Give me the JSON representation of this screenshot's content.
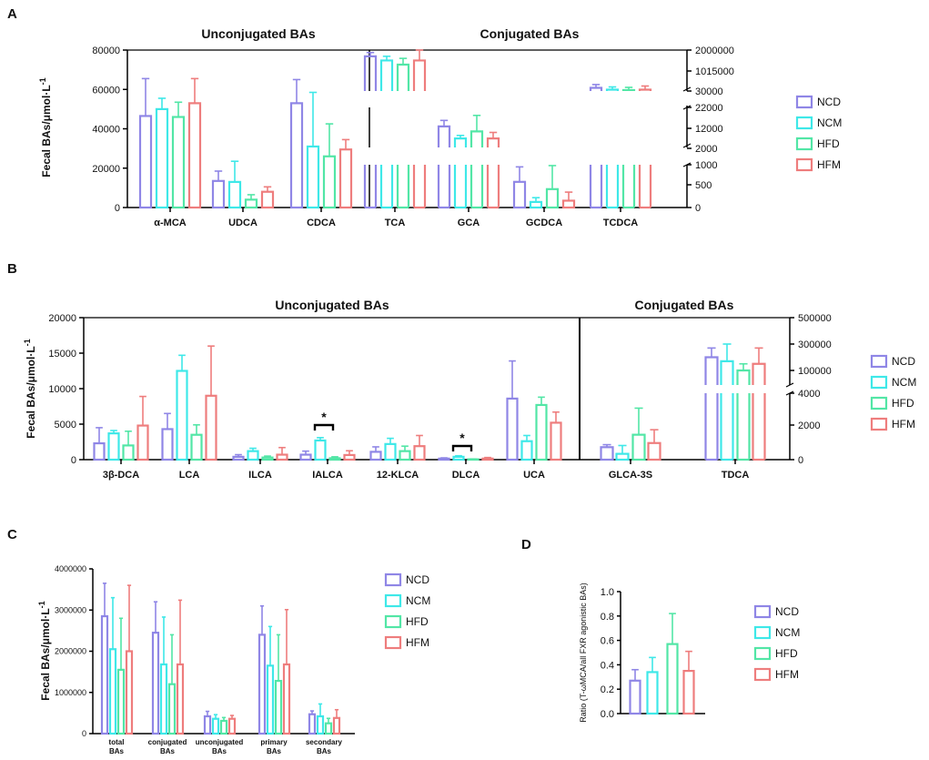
{
  "panels": {
    "a": "A",
    "b": "B",
    "c": "C",
    "d": "D"
  },
  "colors": {
    "NCD": "#8f86e6",
    "NCM": "#3ee8e8",
    "HFD": "#52e6a6",
    "HFM": "#ee7d7d"
  },
  "legend": [
    "NCD",
    "NCM",
    "HFD",
    "HFM"
  ],
  "chart_data": [
    {
      "id": "A",
      "type": "bar",
      "ylabel": "Fecal BAs/μmol·L-1",
      "sections": [
        "Unconjugated BAs",
        "Conjugated BAs"
      ],
      "categories": [
        "α-MCA",
        "UDCA",
        "CDCA",
        "TCA",
        "GCA",
        "GCDCA",
        "TCDCA"
      ],
      "left_axis": {
        "range": [
          0,
          80000
        ],
        "ticks": [
          "0",
          "20000",
          "40000",
          "60000",
          "80000"
        ]
      },
      "right_axis": {
        "ticks": [
          "0",
          "500",
          "1000",
          "2000",
          "12000",
          "22000",
          "30000",
          "1015000",
          "2000000"
        ],
        "note": "segmented right axis for conjugated BAs; TCA and TCDCA in upper segment, GCA mid, GCDCA lower"
      },
      "series": [
        {
          "name": "NCD",
          "values": [
            46500,
            13500,
            53000,
            1700000,
            12500,
            600,
            60500
          ],
          "errors": [
            19000,
            5000,
            12000,
            180000,
            3000,
            350,
            1800
          ]
        },
        {
          "name": "NCM",
          "values": [
            50000,
            13000,
            31000,
            1500000,
            6500,
            130,
            58500
          ],
          "errors": [
            5500,
            10500,
            27500,
            200000,
            1500,
            100,
            1500
          ]
        },
        {
          "name": "HFD",
          "values": [
            46000,
            4000,
            26000,
            1300000,
            10000,
            430,
            58000
          ],
          "errors": [
            7500,
            2500,
            16500,
            300000,
            8000,
            550,
            1500
          ]
        },
        {
          "name": "HFM",
          "values": [
            53000,
            8000,
            29500,
            1500000,
            6500,
            160,
            58500
          ],
          "errors": [
            12500,
            2500,
            5000,
            500000,
            3000,
            200,
            2000
          ]
        }
      ]
    },
    {
      "id": "B",
      "type": "bar",
      "ylabel": "Fecal BAs/μmol·L-1",
      "sections": [
        "Unconjugated BAs",
        "Conjugated BAs"
      ],
      "categories": [
        "3β-DCA",
        "LCA",
        "ILCA",
        "IALCA",
        "12-KLCA",
        "DLCA",
        "UCA",
        "GLCA-3S",
        "TDCA"
      ],
      "left_axis": {
        "range": [
          0,
          20000
        ],
        "ticks": [
          "0",
          "5000",
          "10000",
          "15000",
          "20000"
        ]
      },
      "right_axis": {
        "ticks": [
          "0",
          "2000",
          "4000",
          "100000",
          "300000",
          "500000"
        ],
        "note": "segmented right axis; GLCA-3S lower, TDCA upper"
      },
      "significance": [
        {
          "category": "IALCA",
          "mark": "*"
        },
        {
          "category": "DLCA",
          "mark": "*"
        }
      ],
      "series": [
        {
          "name": "NCD",
          "values": [
            2300,
            4300,
            400,
            700,
            1100,
            150,
            8600,
            750,
            200000
          ],
          "errors": [
            2200,
            2200,
            300,
            500,
            700,
            100,
            5300,
            150,
            70000
          ]
        },
        {
          "name": "NCM",
          "values": [
            3700,
            12500,
            1200,
            2700,
            2200,
            400,
            2600,
            350,
            170000
          ],
          "errors": [
            400,
            2200,
            400,
            400,
            800,
            150,
            800,
            500,
            130000
          ]
        },
        {
          "name": "HFD",
          "values": [
            2000,
            3500,
            300,
            200,
            1200,
            50,
            7700,
            1500,
            100000
          ],
          "errors": [
            2000,
            1400,
            200,
            200,
            700,
            50,
            1100,
            1600,
            50000
          ]
        },
        {
          "name": "HFM",
          "values": [
            4800,
            9000,
            700,
            650,
            1900,
            150,
            5200,
            1000,
            150000
          ],
          "errors": [
            4100,
            7000,
            1000,
            600,
            1500,
            150,
            1500,
            800,
            120000
          ]
        }
      ]
    },
    {
      "id": "C",
      "type": "bar",
      "ylabel": "Fecal BAs/μmol·L-1",
      "categories": [
        "total BAs",
        "conjugated BAs",
        "unconjugated BAs",
        "primary BAs",
        "secondary BAs"
      ],
      "ylim": [
        0,
        4000000
      ],
      "ticks": [
        "0",
        "1000000",
        "2000000",
        "3000000",
        "4000000"
      ],
      "series": [
        {
          "name": "NCD",
          "values": [
            2850000,
            2450000,
            420000,
            2400000,
            470000
          ],
          "errors": [
            800000,
            750000,
            120000,
            700000,
            80000
          ]
        },
        {
          "name": "NCM",
          "values": [
            2050000,
            1680000,
            360000,
            1650000,
            420000
          ],
          "errors": [
            1250000,
            1150000,
            100000,
            950000,
            300000
          ]
        },
        {
          "name": "HFD",
          "values": [
            1550000,
            1200000,
            310000,
            1280000,
            250000
          ],
          "errors": [
            1250000,
            1200000,
            80000,
            1120000,
            120000
          ]
        },
        {
          "name": "HFM",
          "values": [
            2000000,
            1680000,
            360000,
            1680000,
            380000
          ],
          "errors": [
            1600000,
            1560000,
            80000,
            1330000,
            200000
          ]
        }
      ]
    },
    {
      "id": "D",
      "type": "bar",
      "ylabel": "Ratio (T-ωMCA/all FXR agonistic BAs)",
      "ylim": [
        0,
        1.0
      ],
      "ticks": [
        "0.0",
        "0.2",
        "0.4",
        "0.6",
        "0.8",
        "1.0"
      ],
      "series": [
        {
          "name": "NCD",
          "values": [
            0.27
          ],
          "errors": [
            0.09
          ]
        },
        {
          "name": "NCM",
          "values": [
            0.34
          ],
          "errors": [
            0.12
          ]
        },
        {
          "name": "HFD",
          "values": [
            0.57
          ],
          "errors": [
            0.25
          ]
        },
        {
          "name": "HFM",
          "values": [
            0.35
          ],
          "errors": [
            0.16
          ]
        }
      ]
    }
  ]
}
